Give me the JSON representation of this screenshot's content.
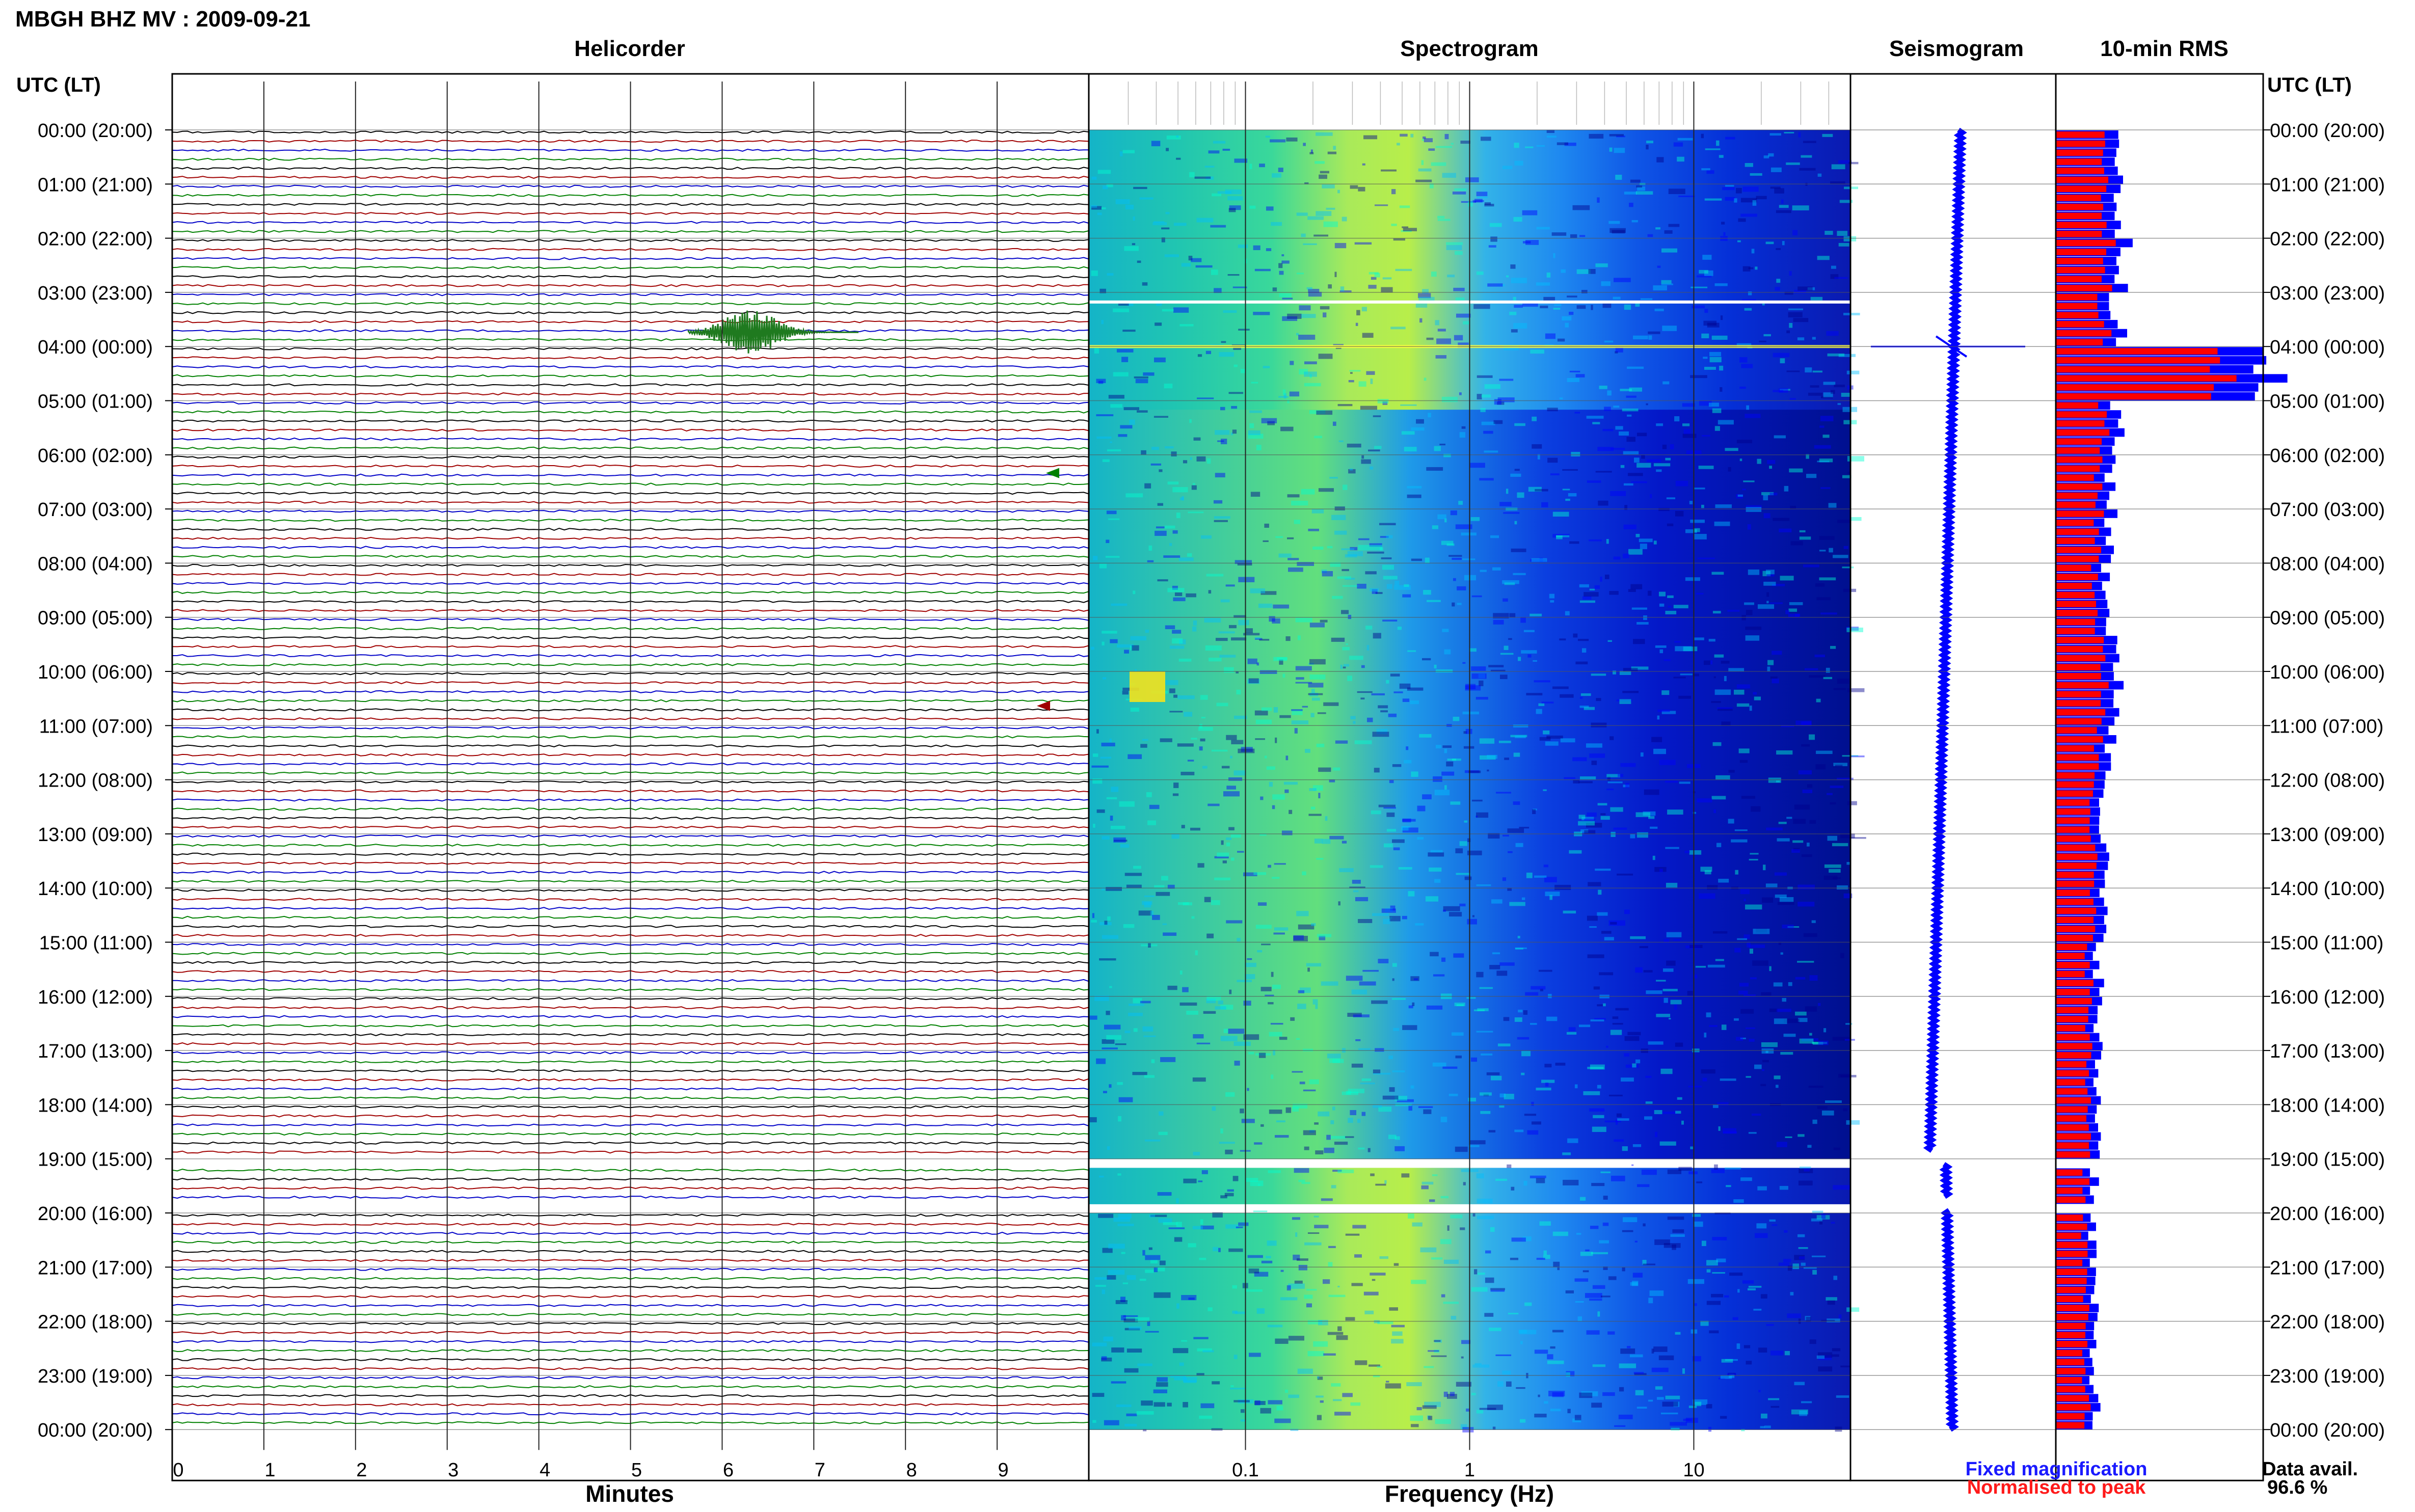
{
  "header": {
    "title": "MBGH BHZ MV : 2009-09-21"
  },
  "panels": {
    "helicorder": "Helicorder",
    "spectrogram": "Spectrogram",
    "seismogram": "Seismogram",
    "rms": "10-min RMS"
  },
  "axis": {
    "left_header": "UTC (LT)",
    "right_header": "UTC (LT)",
    "time_labels": [
      "00:00 (20:00)",
      "01:00 (21:00)",
      "02:00 (22:00)",
      "03:00 (23:00)",
      "04:00 (00:00)",
      "05:00 (01:00)",
      "06:00 (02:00)",
      "07:00 (03:00)",
      "08:00 (04:00)",
      "09:00 (05:00)",
      "10:00 (06:00)",
      "11:00 (07:00)",
      "12:00 (08:00)",
      "13:00 (09:00)",
      "14:00 (10:00)",
      "15:00 (11:00)",
      "16:00 (12:00)",
      "17:00 (13:00)",
      "18:00 (14:00)",
      "19:00 (15:00)",
      "20:00 (16:00)",
      "21:00 (17:00)",
      "22:00 (18:00)",
      "23:00 (19:00)",
      "00:00 (20:00)"
    ],
    "minutes_label": "Minutes",
    "minute_ticks": [
      "0",
      "1",
      "2",
      "3",
      "4",
      "5",
      "6",
      "7",
      "8",
      "9"
    ],
    "freq_label": "Frequency (Hz)",
    "freq_ticks": [
      "0.1",
      "1",
      "10"
    ]
  },
  "legend": {
    "fixed": "Fixed magnification",
    "normalised": "Normalised to peak",
    "fixed_color": "#0000ff",
    "normalised_color": "#ff0000"
  },
  "availability": {
    "label": "Data avail.",
    "value": "96.6 %"
  },
  "chart_data": {
    "type": "heatmap",
    "title": "MBGH BHZ MV : 2009-09-21",
    "helicorder": {
      "x_range_minutes": [
        0,
        10
      ],
      "rows": 144,
      "trace_colors": [
        "#000000",
        "#a00000",
        "#0000c8",
        "#008000"
      ],
      "data_gaps_hours": [
        [
          18.9,
          19.1
        ],
        [
          19.75,
          19.95
        ]
      ],
      "events": [
        {
          "hour": 4.0,
          "minute": 6.3,
          "amplitude": "large"
        },
        {
          "hour": 6.6,
          "minute": 9.6,
          "amplitude": "small"
        },
        {
          "hour": 10.9,
          "minute": 9.5,
          "amplitude": "small"
        }
      ]
    },
    "spectrogram": {
      "x_scale": "log",
      "freq_range_hz": [
        0.02,
        50
      ],
      "colormap": [
        "#00008b",
        "#0000ff",
        "#00bfff",
        "#00ffd0",
        "#ffff00"
      ],
      "energy_peak_hz": 0.4
    },
    "seismogram": {
      "color": "#0000ff",
      "event_hour": 4.0
    },
    "rms_10min": {
      "units": "relative",
      "fixed_magnification_color": "#0000ff",
      "normalised_to_peak_color": "#ff0000",
      "hourly_fixed": [
        0.3,
        0.31,
        0.33,
        0.3,
        1.0,
        0.29,
        0.27,
        0.26,
        0.25,
        0.27,
        0.31,
        0.26,
        0.24,
        0.23,
        0.22,
        0.21,
        0.2,
        0.2,
        0.21,
        0.19,
        0.18,
        0.18,
        0.18,
        0.19
      ],
      "data_gaps_hours": [
        [
          18.9,
          19.1
        ],
        [
          19.75,
          19.95
        ]
      ]
    },
    "data_availability_percent": 96.6
  }
}
